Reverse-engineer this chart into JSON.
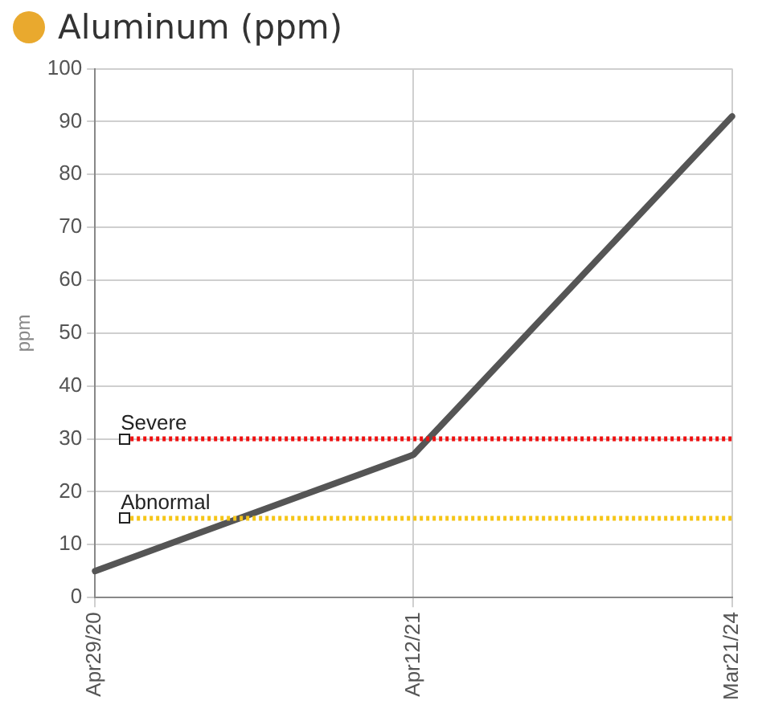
{
  "chart_data": {
    "type": "line",
    "title": "Aluminum (ppm)",
    "ylabel": "ppm",
    "categories": [
      "Apr29/20",
      "Apr12/21",
      "Mar21/24"
    ],
    "series": [
      {
        "color": "#555555",
        "values": [
          5,
          27,
          91
        ]
      }
    ],
    "ylim": [
      0,
      100
    ],
    "yticks": [
      0,
      10,
      20,
      30,
      40,
      50,
      60,
      70,
      80,
      90,
      100
    ],
    "grid": true,
    "legend": false,
    "marker": "none",
    "line_style": "solid",
    "ref_lines": [
      {
        "axis": "y",
        "value": 30,
        "label": "Severe",
        "color": "#ee1111",
        "line_style": "dotted"
      },
      {
        "axis": "y",
        "value": 15,
        "label": "Abnormal",
        "color": "#f5c518",
        "line_style": "dotted"
      }
    ]
  }
}
